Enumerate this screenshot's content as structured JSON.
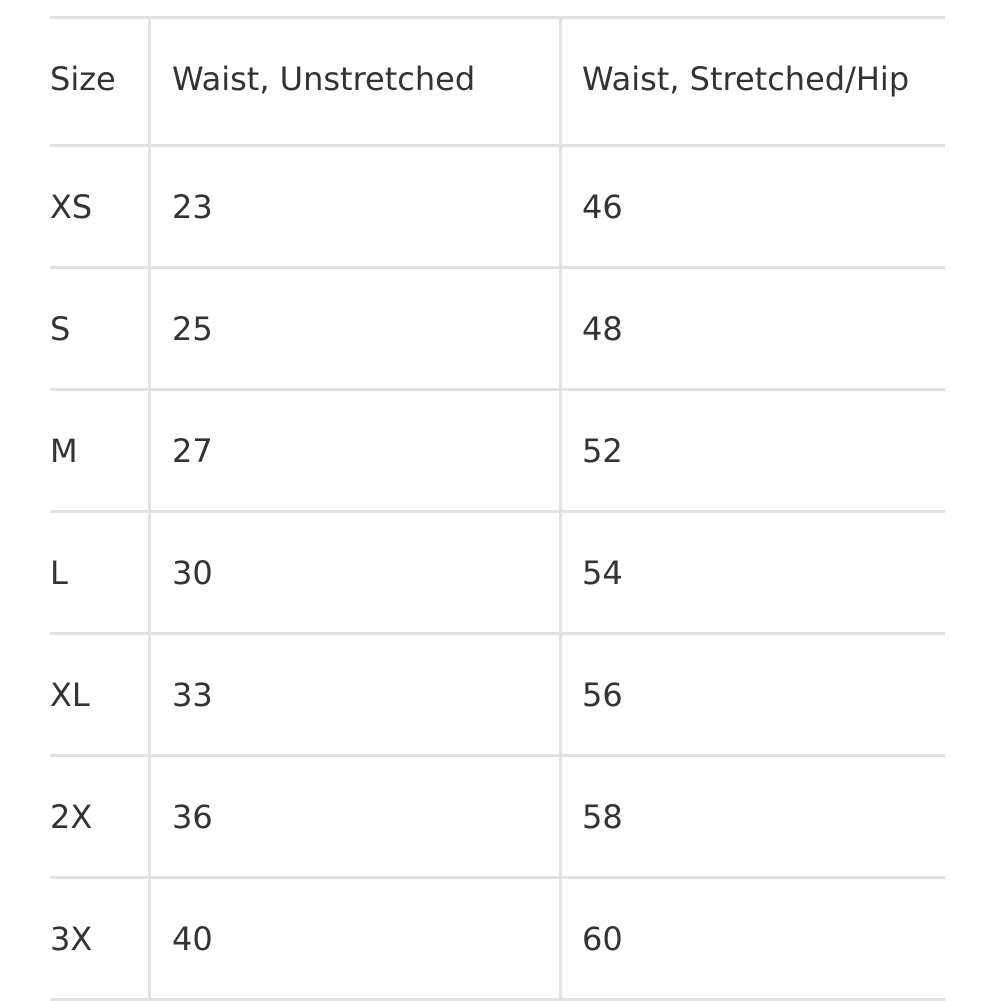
{
  "table": {
    "headers": [
      "Size",
      "Waist, Unstretched",
      "Waist, Stretched/Hip"
    ],
    "rows": [
      [
        "XS",
        "23",
        "46"
      ],
      [
        "S",
        "25",
        "48"
      ],
      [
        "M",
        "27",
        "52"
      ],
      [
        "L",
        "30",
        "54"
      ],
      [
        "XL",
        "33",
        "56"
      ],
      [
        "2X",
        "36",
        "58"
      ],
      [
        "3X",
        "40",
        "60"
      ]
    ]
  }
}
